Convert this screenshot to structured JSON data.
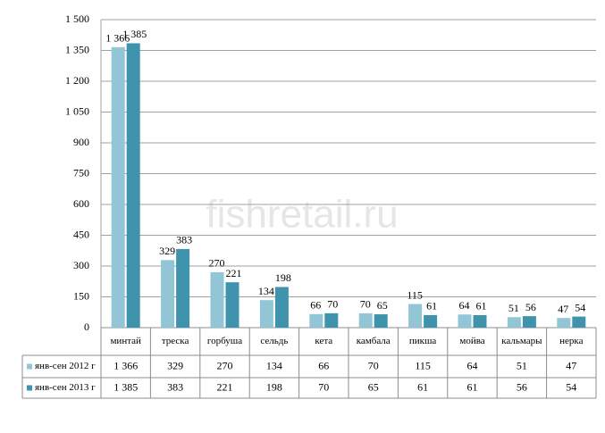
{
  "chart_data": {
    "type": "bar",
    "watermark": "fishretail.ru",
    "categories": [
      "минтай",
      "треска",
      "горбуша",
      "сельдь",
      "кета",
      "камбала",
      "пикша",
      "мойва",
      "кальмары",
      "нерка"
    ],
    "series": [
      {
        "name": "янв-сен 2012 г",
        "color": "#92c5d6",
        "values": [
          1366,
          329,
          270,
          134,
          66,
          70,
          115,
          64,
          51,
          47
        ],
        "value_labels": [
          "1 366",
          "329",
          "270",
          "134",
          "66",
          "70",
          "115",
          "64",
          "51",
          "47"
        ]
      },
      {
        "name": "янв-сен 2013 г",
        "color": "#3f93ad",
        "values": [
          1385,
          383,
          221,
          198,
          70,
          65,
          61,
          61,
          56,
          54
        ],
        "value_labels": [
          "1 385",
          "383",
          "221",
          "198",
          "70",
          "65",
          "61",
          "61",
          "56",
          "54"
        ]
      }
    ],
    "ylim": [
      0,
      1500
    ],
    "yticks": [
      0,
      150,
      300,
      450,
      600,
      750,
      900,
      {
        "value": 1050,
        "label": "1 050"
      },
      {
        "value": 1200,
        "label": "1 200"
      },
      {
        "value": 1350,
        "label": "1 350"
      },
      {
        "value": 1500,
        "label": "1 500"
      }
    ],
    "grid": true
  }
}
